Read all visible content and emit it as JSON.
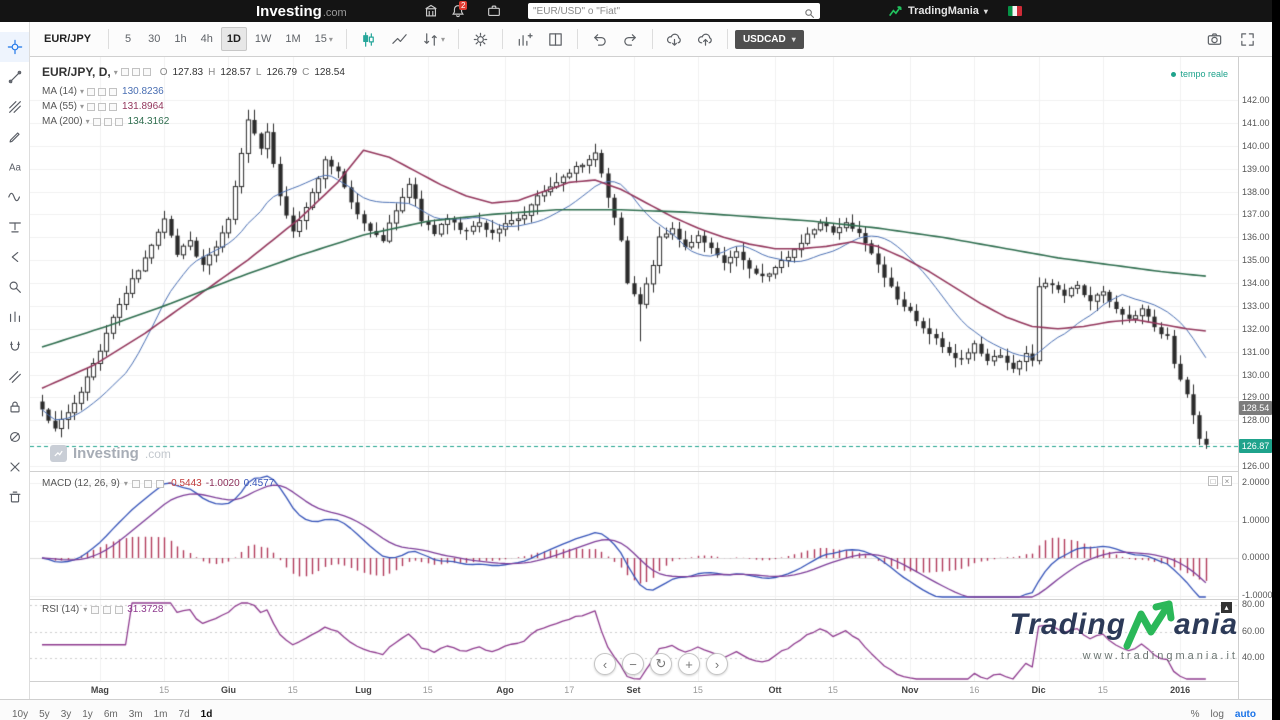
{
  "topbar": {
    "logo": {
      "brand": "Investing",
      "suffix": ".com"
    },
    "search": {
      "placeholder": "\"EUR/USD\" o \"Fiat\""
    },
    "notification_count": "2",
    "partner": {
      "name": "TradingMania"
    }
  },
  "toolbar": {
    "items": [
      {
        "type": "symbol",
        "label": "EUR/JPY"
      },
      {
        "type": "sep"
      },
      {
        "type": "btn",
        "label": "5"
      },
      {
        "type": "btn",
        "label": "30"
      },
      {
        "type": "btn",
        "label": "1h"
      },
      {
        "type": "btn",
        "label": "4h"
      },
      {
        "type": "btn",
        "label": "1D",
        "active": true
      },
      {
        "type": "btn",
        "label": "1W"
      },
      {
        "type": "btn",
        "label": "1M"
      },
      {
        "type": "btn",
        "label": "15",
        "caret": true
      },
      {
        "type": "sep"
      },
      {
        "type": "icon",
        "name": "candlestick-style",
        "accent": true
      },
      {
        "type": "icon",
        "name": "line-style"
      },
      {
        "type": "icon",
        "name": "compare",
        "caret": true
      },
      {
        "type": "sep"
      },
      {
        "type": "icon",
        "name": "settings-gear"
      },
      {
        "type": "sep"
      },
      {
        "type": "icon",
        "name": "indicators"
      },
      {
        "type": "icon",
        "name": "layout-template"
      },
      {
        "type": "sep"
      },
      {
        "type": "icon",
        "name": "undo"
      },
      {
        "type": "icon",
        "name": "redo"
      },
      {
        "type": "sep"
      },
      {
        "type": "icon",
        "name": "cloud-download"
      },
      {
        "type": "icon",
        "name": "cloud-upload"
      },
      {
        "type": "sep"
      },
      {
        "type": "compare-symbol",
        "label": "USDCAD",
        "caret": true
      }
    ],
    "right": [
      "camera",
      "fullscreen"
    ]
  },
  "sidebar": {
    "active_tool": "crosshair",
    "tools": [
      "crosshair",
      "trendline",
      "pitchfork",
      "brush",
      "text",
      "wave",
      "long-position",
      "arrow-left",
      "zoom",
      "bar-pattern",
      "magnet",
      "measure",
      "lock",
      "hide-all",
      "remove",
      "trash"
    ]
  },
  "chart_data": {
    "type": "candlestick",
    "symbol": "EUR/JPY",
    "interval": "D",
    "legend": {
      "title": "EUR/JPY, D,",
      "ma": [
        {
          "label": "MA (14)",
          "value": "130.8236"
        },
        {
          "label": "MA (55)",
          "value": "131.8964"
        },
        {
          "label": "MA (200)",
          "value": "134.3162"
        }
      ]
    },
    "ohlc": {
      "pairs": [
        [
          "O",
          "127.83"
        ],
        [
          "H",
          "128.57"
        ],
        [
          "L",
          "126.79"
        ],
        [
          "C",
          "128.54"
        ]
      ]
    },
    "realtime_label": "tempo reale",
    "watermark": {
      "brand": "Investing",
      "suffix": ".com"
    },
    "price_axis": {
      "min": 126,
      "max": 142,
      "step": 1,
      "ticks": [
        "142.00",
        "141.00",
        "140.00",
        "139.00",
        "138.00",
        "137.00",
        "136.00",
        "135.00",
        "134.00",
        "133.00",
        "132.00",
        "131.00",
        "130.00",
        "129.00",
        "128.00",
        "127.00",
        "126.00"
      ],
      "last_close_label": "128.54",
      "current_price_label": "126.87"
    },
    "candle_count": 182,
    "close_anchors": [
      [
        0,
        128.4
      ],
      [
        2,
        127.7
      ],
      [
        4,
        128.3
      ],
      [
        6,
        129.3
      ],
      [
        8,
        130.4
      ],
      [
        10,
        131.8
      ],
      [
        12,
        133.0
      ],
      [
        14,
        134.1
      ],
      [
        16,
        135.0
      ],
      [
        18,
        136.2
      ],
      [
        19,
        136.8
      ],
      [
        21,
        135.3
      ],
      [
        23,
        135.8
      ],
      [
        25,
        134.7
      ],
      [
        27,
        135.6
      ],
      [
        29,
        136.8
      ],
      [
        30,
        138.2
      ],
      [
        32,
        141.2
      ],
      [
        34,
        139.9
      ],
      [
        35,
        140.6
      ],
      [
        37,
        137.8
      ],
      [
        39,
        136.2
      ],
      [
        41,
        137.3
      ],
      [
        44,
        139.3
      ],
      [
        46,
        138.8
      ],
      [
        48,
        137.5
      ],
      [
        50,
        136.6
      ],
      [
        53,
        135.9
      ],
      [
        55,
        137.2
      ],
      [
        57,
        138.4
      ],
      [
        59,
        136.8
      ],
      [
        61,
        136.2
      ],
      [
        63,
        136.8
      ],
      [
        66,
        136.2
      ],
      [
        68,
        136.6
      ],
      [
        70,
        136.1
      ],
      [
        73,
        136.7
      ],
      [
        75,
        137.0
      ],
      [
        77,
        137.8
      ],
      [
        80,
        138.4
      ],
      [
        82,
        138.8
      ],
      [
        84,
        139.2
      ],
      [
        86,
        139.6
      ],
      [
        88,
        137.8
      ],
      [
        90,
        135.8
      ],
      [
        91,
        134.0
      ],
      [
        93,
        133.0
      ],
      [
        95,
        134.8
      ],
      [
        96,
        136.0
      ],
      [
        98,
        136.4
      ],
      [
        100,
        135.6
      ],
      [
        102,
        136.1
      ],
      [
        104,
        135.5
      ],
      [
        106,
        134.9
      ],
      [
        108,
        135.4
      ],
      [
        110,
        134.6
      ],
      [
        112,
        134.2
      ],
      [
        114,
        134.7
      ],
      [
        116,
        135.1
      ],
      [
        119,
        136.1
      ],
      [
        121,
        136.6
      ],
      [
        123,
        136.2
      ],
      [
        125,
        136.7
      ],
      [
        127,
        136.1
      ],
      [
        129,
        135.2
      ],
      [
        131,
        134.3
      ],
      [
        133,
        133.2
      ],
      [
        135,
        132.7
      ],
      [
        137,
        132.1
      ],
      [
        139,
        131.5
      ],
      [
        141,
        131.0
      ],
      [
        143,
        130.6
      ],
      [
        145,
        131.3
      ],
      [
        147,
        130.5
      ],
      [
        149,
        130.9
      ],
      [
        151,
        130.2
      ],
      [
        153,
        130.9
      ],
      [
        154,
        130.7
      ],
      [
        155,
        133.9
      ],
      [
        157,
        134.0
      ],
      [
        159,
        133.5
      ],
      [
        161,
        133.9
      ],
      [
        163,
        133.2
      ],
      [
        165,
        133.6
      ],
      [
        167,
        132.8
      ],
      [
        169,
        132.4
      ],
      [
        171,
        132.9
      ],
      [
        173,
        132.1
      ],
      [
        175,
        131.6
      ],
      [
        176,
        130.4
      ],
      [
        178,
        129.2
      ],
      [
        179,
        128.2
      ],
      [
        180,
        127.1
      ],
      [
        181,
        126.9
      ]
    ],
    "ma55_anchors": [
      [
        0,
        129.4
      ],
      [
        8,
        130.4
      ],
      [
        16,
        131.8
      ],
      [
        24,
        133.4
      ],
      [
        32,
        135.0
      ],
      [
        40,
        136.8
      ],
      [
        46,
        138.4
      ],
      [
        50,
        139.8
      ],
      [
        54,
        139.5
      ],
      [
        58,
        138.9
      ],
      [
        62,
        138.3
      ],
      [
        66,
        137.8
      ],
      [
        70,
        137.5
      ],
      [
        74,
        137.6
      ],
      [
        78,
        138.0
      ],
      [
        82,
        138.4
      ],
      [
        86,
        138.5
      ],
      [
        90,
        138.1
      ],
      [
        94,
        137.5
      ],
      [
        98,
        136.9
      ],
      [
        102,
        136.4
      ],
      [
        106,
        136.0
      ],
      [
        110,
        135.7
      ],
      [
        114,
        135.5
      ],
      [
        118,
        135.5
      ],
      [
        122,
        135.6
      ],
      [
        126,
        135.8
      ],
      [
        130,
        135.6
      ],
      [
        134,
        135.1
      ],
      [
        138,
        134.5
      ],
      [
        142,
        133.8
      ],
      [
        146,
        133.1
      ],
      [
        150,
        132.5
      ],
      [
        154,
        132.1
      ],
      [
        158,
        132.0
      ],
      [
        162,
        132.1
      ],
      [
        166,
        132.3
      ],
      [
        170,
        132.4
      ],
      [
        174,
        132.2
      ],
      [
        178,
        132.0
      ],
      [
        181,
        131.9
      ]
    ],
    "ma200_anchors": [
      [
        0,
        131.2
      ],
      [
        10,
        132.1
      ],
      [
        20,
        133.1
      ],
      [
        30,
        134.2
      ],
      [
        40,
        135.2
      ],
      [
        50,
        136.1
      ],
      [
        60,
        136.7
      ],
      [
        70,
        137.0
      ],
      [
        80,
        137.2
      ],
      [
        90,
        137.2
      ],
      [
        100,
        137.1
      ],
      [
        110,
        136.9
      ],
      [
        120,
        136.7
      ],
      [
        130,
        136.4
      ],
      [
        140,
        136.0
      ],
      [
        150,
        135.5
      ],
      [
        158,
        135.1
      ],
      [
        166,
        134.8
      ],
      [
        174,
        134.5
      ],
      [
        181,
        134.3
      ]
    ],
    "months": [
      {
        "label": "Mag",
        "i": 9,
        "major": true
      },
      {
        "label": "15",
        "i": 19
      },
      {
        "label": "Giu",
        "i": 29,
        "major": true
      },
      {
        "label": "15",
        "i": 39
      },
      {
        "label": "Lug",
        "i": 50,
        "major": true
      },
      {
        "label": "15",
        "i": 60
      },
      {
        "label": "Ago",
        "i": 72,
        "major": true
      },
      {
        "label": "17",
        "i": 82
      },
      {
        "label": "Set",
        "i": 92,
        "major": true
      },
      {
        "label": "15",
        "i": 102
      },
      {
        "label": "Ott",
        "i": 114,
        "major": true
      },
      {
        "label": "15",
        "i": 123
      },
      {
        "label": "Nov",
        "i": 135,
        "major": true
      },
      {
        "label": "16",
        "i": 145
      },
      {
        "label": "Dic",
        "i": 155,
        "major": true
      },
      {
        "label": "15",
        "i": 165
      },
      {
        "label": "2016",
        "i": 177,
        "major": true
      }
    ],
    "macd": {
      "label": "MACD (12, 26, 9)",
      "values": [
        "-0.5443",
        "-1.0020",
        "0.4577"
      ],
      "axis_ticks": [
        "2.0000",
        "1.0000",
        "0.0000",
        "-1.0000"
      ]
    },
    "rsi": {
      "label": "RSI (14)",
      "value": "31.3728",
      "axis_ticks": [
        "80.00",
        "60.00",
        "40.00"
      ]
    }
  },
  "nav": [
    {
      "name": "pan-left",
      "glyph": "‹"
    },
    {
      "name": "zoom-out",
      "glyph": "−"
    },
    {
      "name": "reset-view",
      "glyph": "↻"
    },
    {
      "name": "zoom-in",
      "glyph": "+"
    },
    {
      "name": "pan-right",
      "glyph": "›"
    }
  ],
  "bottombar": {
    "ranges": [
      {
        "label": "10y"
      },
      {
        "label": "5y"
      },
      {
        "label": "3y"
      },
      {
        "label": "1y"
      },
      {
        "label": "6m"
      },
      {
        "label": "3m"
      },
      {
        "label": "1m"
      },
      {
        "label": "7d"
      },
      {
        "label": "1d",
        "active": true
      }
    ],
    "scale_buttons": [
      {
        "label": "%"
      },
      {
        "label": "log"
      },
      {
        "label": "auto",
        "active": true
      }
    ]
  },
  "tradingmania_watermark": {
    "brand_prefix": "Trading",
    "brand_suffix": "ania",
    "url": "www.tradingmania.it"
  },
  "colors": {
    "accent_teal": "#1fa38c",
    "down_candle": "#2b2b2b",
    "ma14": "#4a6fb3",
    "ma55": "#93365c",
    "ma200": "#2f6e4f",
    "macd_line": "#3452b8",
    "macd_signal": "#7d3c98",
    "macd_histogram": "#b13a5a",
    "rsi_line": "#8e3a8e"
  }
}
